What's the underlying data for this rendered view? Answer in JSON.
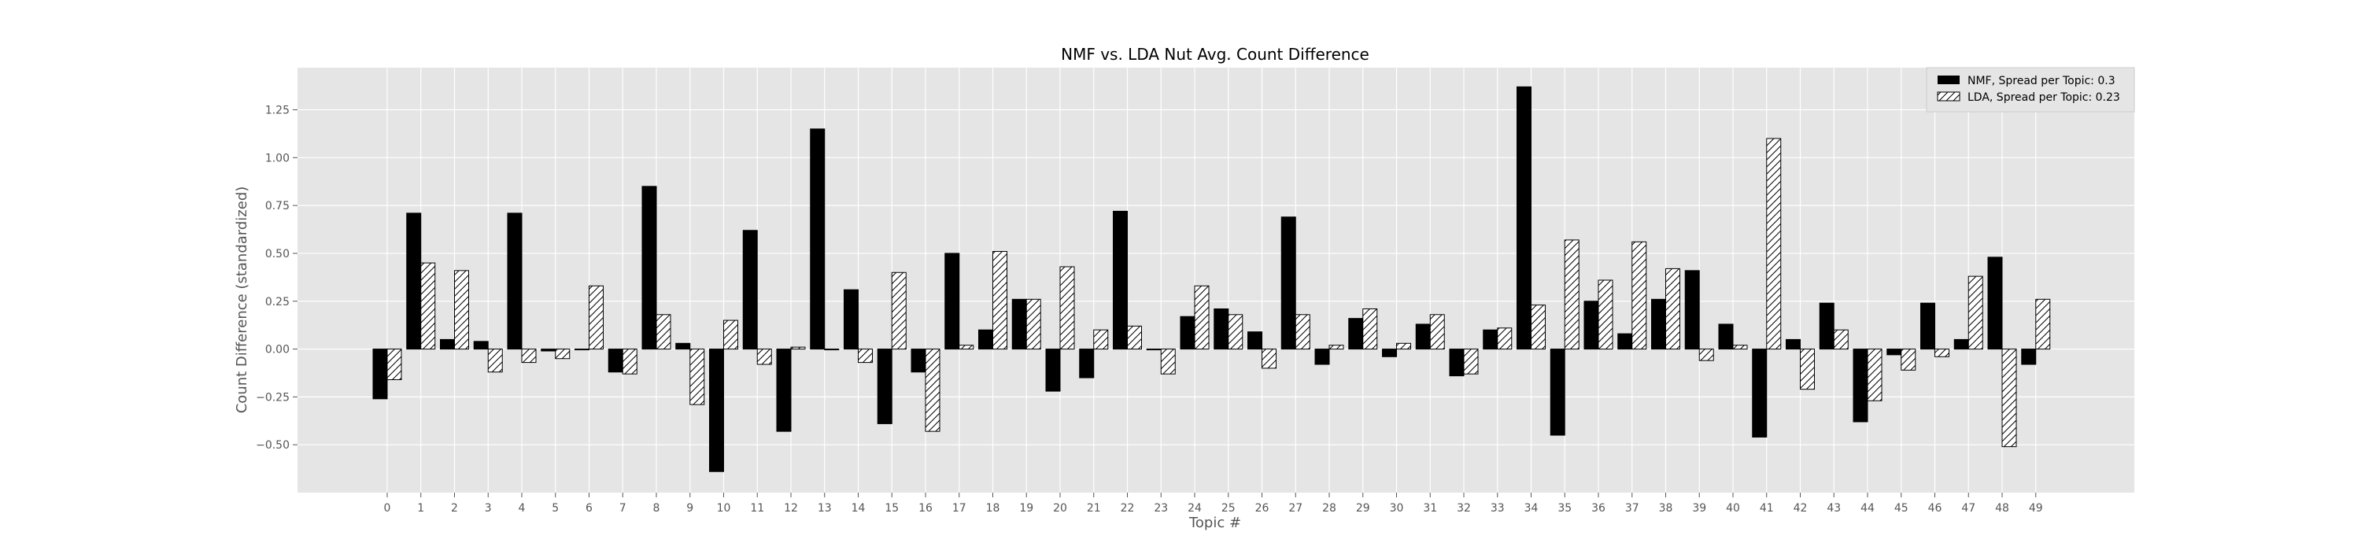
{
  "chart_data": {
    "type": "bar",
    "title": "NMF vs. LDA Nut Avg. Count Difference",
    "xlabel": "Topic #",
    "ylabel": "Count Difference (standardized)",
    "ylim": [
      -0.75,
      1.47
    ],
    "yticks": [
      -0.5,
      -0.25,
      0.0,
      0.25,
      0.5,
      0.75,
      1.0,
      1.25
    ],
    "ytick_labels": [
      "−0.50",
      "−0.25",
      "0.00",
      "0.25",
      "0.50",
      "0.75",
      "1.00",
      "1.25"
    ],
    "grid": true,
    "legend_position": "top-right",
    "categories": [
      "0",
      "1",
      "2",
      "3",
      "4",
      "5",
      "6",
      "7",
      "8",
      "9",
      "10",
      "11",
      "12",
      "13",
      "14",
      "15",
      "16",
      "17",
      "18",
      "19",
      "20",
      "21",
      "22",
      "23",
      "24",
      "25",
      "26",
      "27",
      "28",
      "29",
      "30",
      "31",
      "32",
      "33",
      "34",
      "35",
      "36",
      "37",
      "38",
      "39",
      "40",
      "41",
      "42",
      "43",
      "44",
      "45",
      "46",
      "47",
      "48",
      "49"
    ],
    "series": [
      {
        "name": "NMF, Spread per Topic: 0.3",
        "fill": "#000000",
        "hatch": false,
        "values": [
          -0.26,
          0.71,
          0.05,
          0.04,
          0.71,
          -0.01,
          0.0,
          -0.12,
          0.85,
          0.03,
          -0.64,
          0.62,
          -0.43,
          1.15,
          0.31,
          -0.39,
          -0.12,
          0.5,
          0.1,
          0.26,
          -0.22,
          -0.15,
          0.72,
          0.0,
          0.17,
          0.21,
          0.09,
          0.69,
          -0.08,
          0.16,
          -0.04,
          0.13,
          -0.14,
          0.1,
          1.37,
          -0.45,
          0.25,
          0.08,
          0.26,
          0.41,
          0.13,
          -0.46,
          0.05,
          0.24,
          -0.38,
          -0.03,
          0.24,
          0.05,
          0.48,
          -0.08
        ]
      },
      {
        "name": "LDA, Spread per Topic: 0.23",
        "fill": "#ffffff",
        "hatch": true,
        "values": [
          -0.16,
          0.45,
          0.41,
          -0.12,
          -0.07,
          -0.05,
          0.33,
          -0.13,
          0.18,
          -0.29,
          0.15,
          -0.08,
          0.01,
          0.0,
          -0.07,
          0.4,
          -0.43,
          0.02,
          0.51,
          0.26,
          0.43,
          0.1,
          0.12,
          -0.13,
          0.33,
          0.18,
          -0.1,
          0.18,
          0.02,
          0.21,
          0.03,
          0.18,
          -0.13,
          0.11,
          0.23,
          0.57,
          0.36,
          0.56,
          0.42,
          -0.06,
          0.02,
          1.1,
          -0.21,
          0.1,
          -0.27,
          -0.11,
          -0.04,
          0.38,
          -0.51,
          0.26
        ]
      }
    ]
  },
  "colors": {
    "axes_background": "#e5e5e5",
    "grid": "#ffffff",
    "tick_text": "#555555",
    "label_text": "#555555",
    "title_text": "#000000"
  }
}
